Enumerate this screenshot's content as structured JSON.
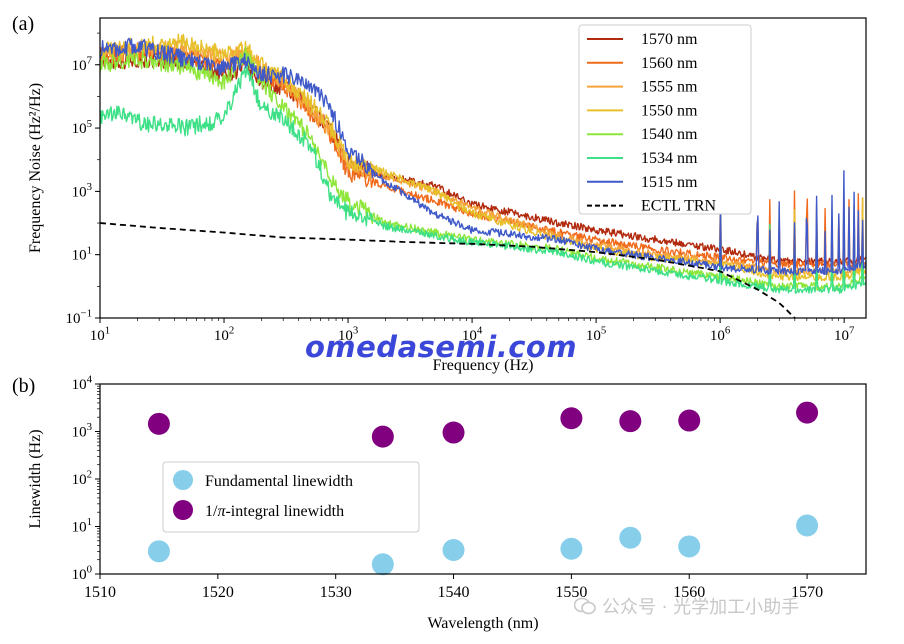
{
  "chart_data": [
    {
      "panel_label": "(a)",
      "type": "line",
      "xlabel": "Frequency (Hz)",
      "ylabel": "Frequency Noise (Hz²/Hz)",
      "xscale": "log",
      "yscale": "log",
      "xlim": [
        10,
        15000000
      ],
      "ylim": [
        0.1,
        300000000
      ],
      "xticks": [
        {
          "v": 10,
          "b": "10",
          "e": "1"
        },
        {
          "v": 100,
          "b": "10",
          "e": "2"
        },
        {
          "v": 1000,
          "b": "10",
          "e": "3"
        },
        {
          "v": 10000,
          "b": "10",
          "e": "4"
        },
        {
          "v": 100000,
          "b": "10",
          "e": "5"
        },
        {
          "v": 1000000,
          "b": "10",
          "e": "6"
        },
        {
          "v": 10000000,
          "b": "10",
          "e": "7"
        }
      ],
      "yticks": [
        {
          "v": 0.1,
          "b": "10",
          "e": "−1"
        },
        {
          "v": 10,
          "b": "10",
          "e": "1"
        },
        {
          "v": 1000,
          "b": "10",
          "e": "3"
        },
        {
          "v": 100000,
          "b": "10",
          "e": "5"
        },
        {
          "v": 10000000,
          "b": "10",
          "e": "7"
        }
      ],
      "legend_position": "top-right",
      "series": [
        {
          "name": "1570 nm",
          "color": "#b22a0e",
          "points": [
            [
              10,
              12000000.0
            ],
            [
              20,
              15000000.0
            ],
            [
              50,
              13000000.0
            ],
            [
              100,
              5000000.0
            ],
            [
              150,
              8000000.0
            ],
            [
              200,
              3000000.0
            ],
            [
              300,
              2000000.0
            ],
            [
              500,
              400000.0
            ],
            [
              700,
              100000.0
            ],
            [
              1000,
              8000.0
            ],
            [
              2000,
              3000.0
            ],
            [
              5000,
              1500.0
            ],
            [
              10000,
              400
            ],
            [
              50000,
              100
            ],
            [
              100000,
              60
            ],
            [
              300000,
              30
            ],
            [
              1000000,
              15
            ],
            [
              3000000,
              6
            ],
            [
              10000000,
              6
            ],
            [
              15000000,
              7
            ]
          ]
        },
        {
          "name": "1560 nm",
          "color": "#f06a1c",
          "points": [
            [
              10,
              18000000.0
            ],
            [
              20,
              25000000.0
            ],
            [
              50,
              20000000.0
            ],
            [
              100,
              8000000.0
            ],
            [
              150,
              20000000.0
            ],
            [
              200,
              5000000.0
            ],
            [
              300,
              2500000.0
            ],
            [
              500,
              300000.0
            ],
            [
              700,
              80000.0
            ],
            [
              1000,
              4000.0
            ],
            [
              2000,
              1500.0
            ],
            [
              5000,
              500
            ],
            [
              10000,
              200
            ],
            [
              50000,
              50
            ],
            [
              100000,
              30
            ],
            [
              300000,
              15
            ],
            [
              1000000,
              8
            ],
            [
              3000000,
              5
            ],
            [
              10000000,
              5
            ],
            [
              15000000,
              6
            ]
          ]
        },
        {
          "name": "1555 nm",
          "color": "#f5a33a",
          "points": [
            [
              10,
              20000000.0
            ],
            [
              20,
              30000000.0
            ],
            [
              50,
              30000000.0
            ],
            [
              100,
              15000000.0
            ],
            [
              150,
              25000000.0
            ],
            [
              200,
              8000000.0
            ],
            [
              300,
              3000000.0
            ],
            [
              500,
              400000.0
            ],
            [
              700,
              100000.0
            ],
            [
              1000,
              6000.0
            ],
            [
              2000,
              3000.0
            ],
            [
              5000,
              1000.0
            ],
            [
              10000,
              300
            ],
            [
              50000,
              40
            ],
            [
              100000,
              20
            ],
            [
              300000,
              10
            ],
            [
              1000000,
              6
            ],
            [
              3000000,
              3
            ],
            [
              10000000,
              3
            ],
            [
              15000000,
              4
            ]
          ]
        },
        {
          "name": "1550 nm",
          "color": "#e6c12a",
          "points": [
            [
              10,
              25000000.0
            ],
            [
              20,
              40000000.0
            ],
            [
              50,
              50000000.0
            ],
            [
              100,
              20000000.0
            ],
            [
              150,
              30000000.0
            ],
            [
              200,
              10000000.0
            ],
            [
              300,
              4000000.0
            ],
            [
              500,
              600000.0
            ],
            [
              700,
              150000.0
            ],
            [
              1000,
              10000.0
            ],
            [
              2000,
              4000.0
            ],
            [
              5000,
              1000.0
            ],
            [
              10000,
              200
            ],
            [
              50000,
              30
            ],
            [
              100000,
              15
            ],
            [
              300000,
              8
            ],
            [
              1000000,
              5
            ],
            [
              3000000,
              2
            ],
            [
              10000000,
              2
            ],
            [
              15000000,
              3
            ]
          ]
        },
        {
          "name": "1540 nm",
          "color": "#8ee63a",
          "points": [
            [
              10,
              10000000.0
            ],
            [
              20,
              15000000.0
            ],
            [
              50,
              8000000.0
            ],
            [
              100,
              3000000.0
            ],
            [
              150,
              20000000.0
            ],
            [
              200,
              3000000.0
            ],
            [
              300,
              500000.0
            ],
            [
              500,
              50000.0
            ],
            [
              700,
              3000.0
            ],
            [
              1000,
              500
            ],
            [
              2000,
              100
            ],
            [
              5000,
              50
            ],
            [
              10000,
              30
            ],
            [
              50000,
              15
            ],
            [
              100000,
              8
            ],
            [
              300000,
              4
            ],
            [
              1000000,
              2
            ],
            [
              3000000,
              1
            ],
            [
              10000000,
              1
            ],
            [
              15000000,
              2
            ]
          ]
        },
        {
          "name": "1534 nm",
          "color": "#3de086",
          "points": [
            [
              10,
              200000.0
            ],
            [
              15,
              300000.0
            ],
            [
              20,
              150000.0
            ],
            [
              50,
              100000.0
            ],
            [
              100,
              200000.0
            ],
            [
              150,
              8000000.0
            ],
            [
              200,
              500000.0
            ],
            [
              300,
              200000.0
            ],
            [
              500,
              30000.0
            ],
            [
              700,
              1000.0
            ],
            [
              1000,
              200
            ],
            [
              2000,
              80
            ],
            [
              5000,
              40
            ],
            [
              10000,
              25
            ],
            [
              50000,
              12
            ],
            [
              100000,
              6
            ],
            [
              300000,
              3
            ],
            [
              1000000,
              1.5
            ],
            [
              3000000,
              0.8
            ],
            [
              10000000,
              0.8
            ],
            [
              15000000,
              1.2
            ]
          ]
        },
        {
          "name": "1515 nm",
          "color": "#4059c9",
          "points": [
            [
              10,
              30000000.0
            ],
            [
              20,
              40000000.0
            ],
            [
              50,
              15000000.0
            ],
            [
              100,
              8000000.0
            ],
            [
              150,
              15000000.0
            ],
            [
              200,
              5000000.0
            ],
            [
              300,
              5000000.0
            ],
            [
              500,
              2000000.0
            ],
            [
              700,
              500000.0
            ],
            [
              1000,
              20000.0
            ],
            [
              2000,
              2000.0
            ],
            [
              5000,
              200
            ],
            [
              10000,
              60
            ],
            [
              50000,
              30
            ],
            [
              100000,
              15
            ],
            [
              300000,
              8
            ],
            [
              1000000,
              4
            ],
            [
              3000000,
              3
            ],
            [
              10000000,
              3
            ],
            [
              15000000,
              5
            ]
          ]
        },
        {
          "name": "ECTL TRN",
          "color": "#000000",
          "dashed": true,
          "points": [
            [
              10,
              100
            ],
            [
              30,
              70
            ],
            [
              100,
              50
            ],
            [
              300,
              35
            ],
            [
              1000,
              30
            ],
            [
              3000,
              25
            ],
            [
              10000,
              22
            ],
            [
              30000,
              18
            ],
            [
              100000,
              12
            ],
            [
              300000,
              7
            ],
            [
              1000000,
              3
            ],
            [
              2000000,
              0.8
            ],
            [
              3000000,
              0.3
            ],
            [
              4000000,
              0.1
            ]
          ]
        }
      ]
    },
    {
      "panel_label": "(b)",
      "type": "scatter",
      "xlabel": "Wavelength (nm)",
      "ylabel": "Linewidth (Hz)",
      "xscale": "linear",
      "yscale": "log",
      "xlim": [
        1510,
        1575
      ],
      "ylim": [
        1,
        10000
      ],
      "xticks": [
        {
          "v": 1510,
          "t": "1510"
        },
        {
          "v": 1520,
          "t": "1520"
        },
        {
          "v": 1530,
          "t": "1530"
        },
        {
          "v": 1540,
          "t": "1540"
        },
        {
          "v": 1550,
          "t": "1550"
        },
        {
          "v": 1560,
          "t": "1560"
        },
        {
          "v": 1570,
          "t": "1570"
        }
      ],
      "yticks": [
        {
          "v": 1,
          "b": "10",
          "e": "0"
        },
        {
          "v": 10,
          "b": "10",
          "e": "1"
        },
        {
          "v": 100,
          "b": "10",
          "e": "2"
        },
        {
          "v": 1000,
          "b": "10",
          "e": "3"
        },
        {
          "v": 10000,
          "b": "10",
          "e": "4"
        }
      ],
      "legend_position": "lower-left",
      "series": [
        {
          "name": "Fundamental linewidth",
          "color": "#87ceeb",
          "x": [
            1515,
            1534,
            1540,
            1550,
            1555,
            1560,
            1570
          ],
          "y": [
            3.0,
            1.6,
            3.2,
            3.4,
            5.8,
            3.8,
            10.5
          ]
        },
        {
          "name": "1/π-integral linewidth",
          "name_prefix": "1/",
          "name_pi": "π",
          "name_suffix": "-integral linewidth",
          "color": "#800080",
          "x": [
            1515,
            1534,
            1540,
            1550,
            1555,
            1560,
            1570
          ],
          "y": [
            1450,
            780,
            950,
            1900,
            1650,
            1700,
            2500
          ]
        }
      ]
    }
  ],
  "watermark": "omedasemi.com",
  "wechat_caption": "公众号 · 光学加工小助手"
}
